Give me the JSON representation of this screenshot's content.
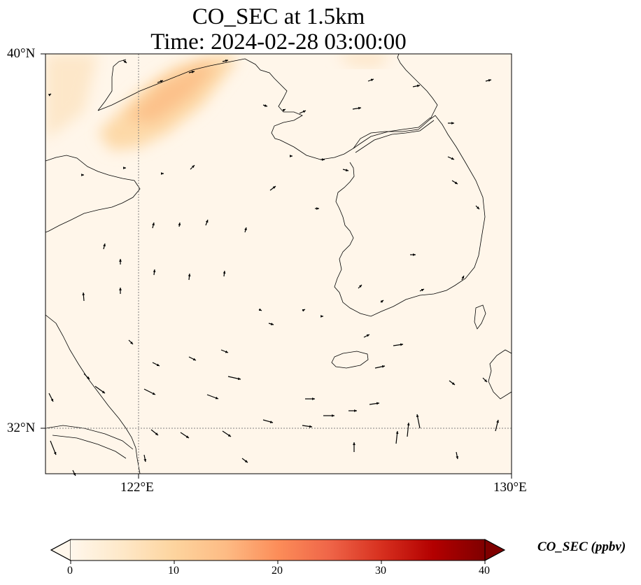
{
  "title": {
    "line1": "CO_SEC at 1.5km",
    "line2": "Time: 2024-02-28 03:00:00"
  },
  "map": {
    "lon_range": [
      119,
      130
    ],
    "lat_range": [
      31,
      40
    ],
    "lon_ticks": [
      {
        "value": 122,
        "label": "122°E"
      },
      {
        "value": 130,
        "label": "130°E"
      }
    ],
    "lat_ticks": [
      {
        "value": 40,
        "label": "40°N"
      },
      {
        "value": 32,
        "label": "32°N"
      }
    ],
    "gridlines": "dotted at 122°E and 32°N",
    "arrows": "wind vectors"
  },
  "colorbar": {
    "label": "CO_SEC (ppbv)",
    "ticks": [
      "0",
      "10",
      "20",
      "30",
      "40"
    ],
    "range": [
      0,
      40
    ],
    "colormap": "OrRd",
    "colors": [
      "#fff7ec",
      "#fee8c8",
      "#fdd49e",
      "#fdbb84",
      "#fc8d59",
      "#ef6548",
      "#d7301f",
      "#b30000",
      "#7f0000"
    ]
  }
}
